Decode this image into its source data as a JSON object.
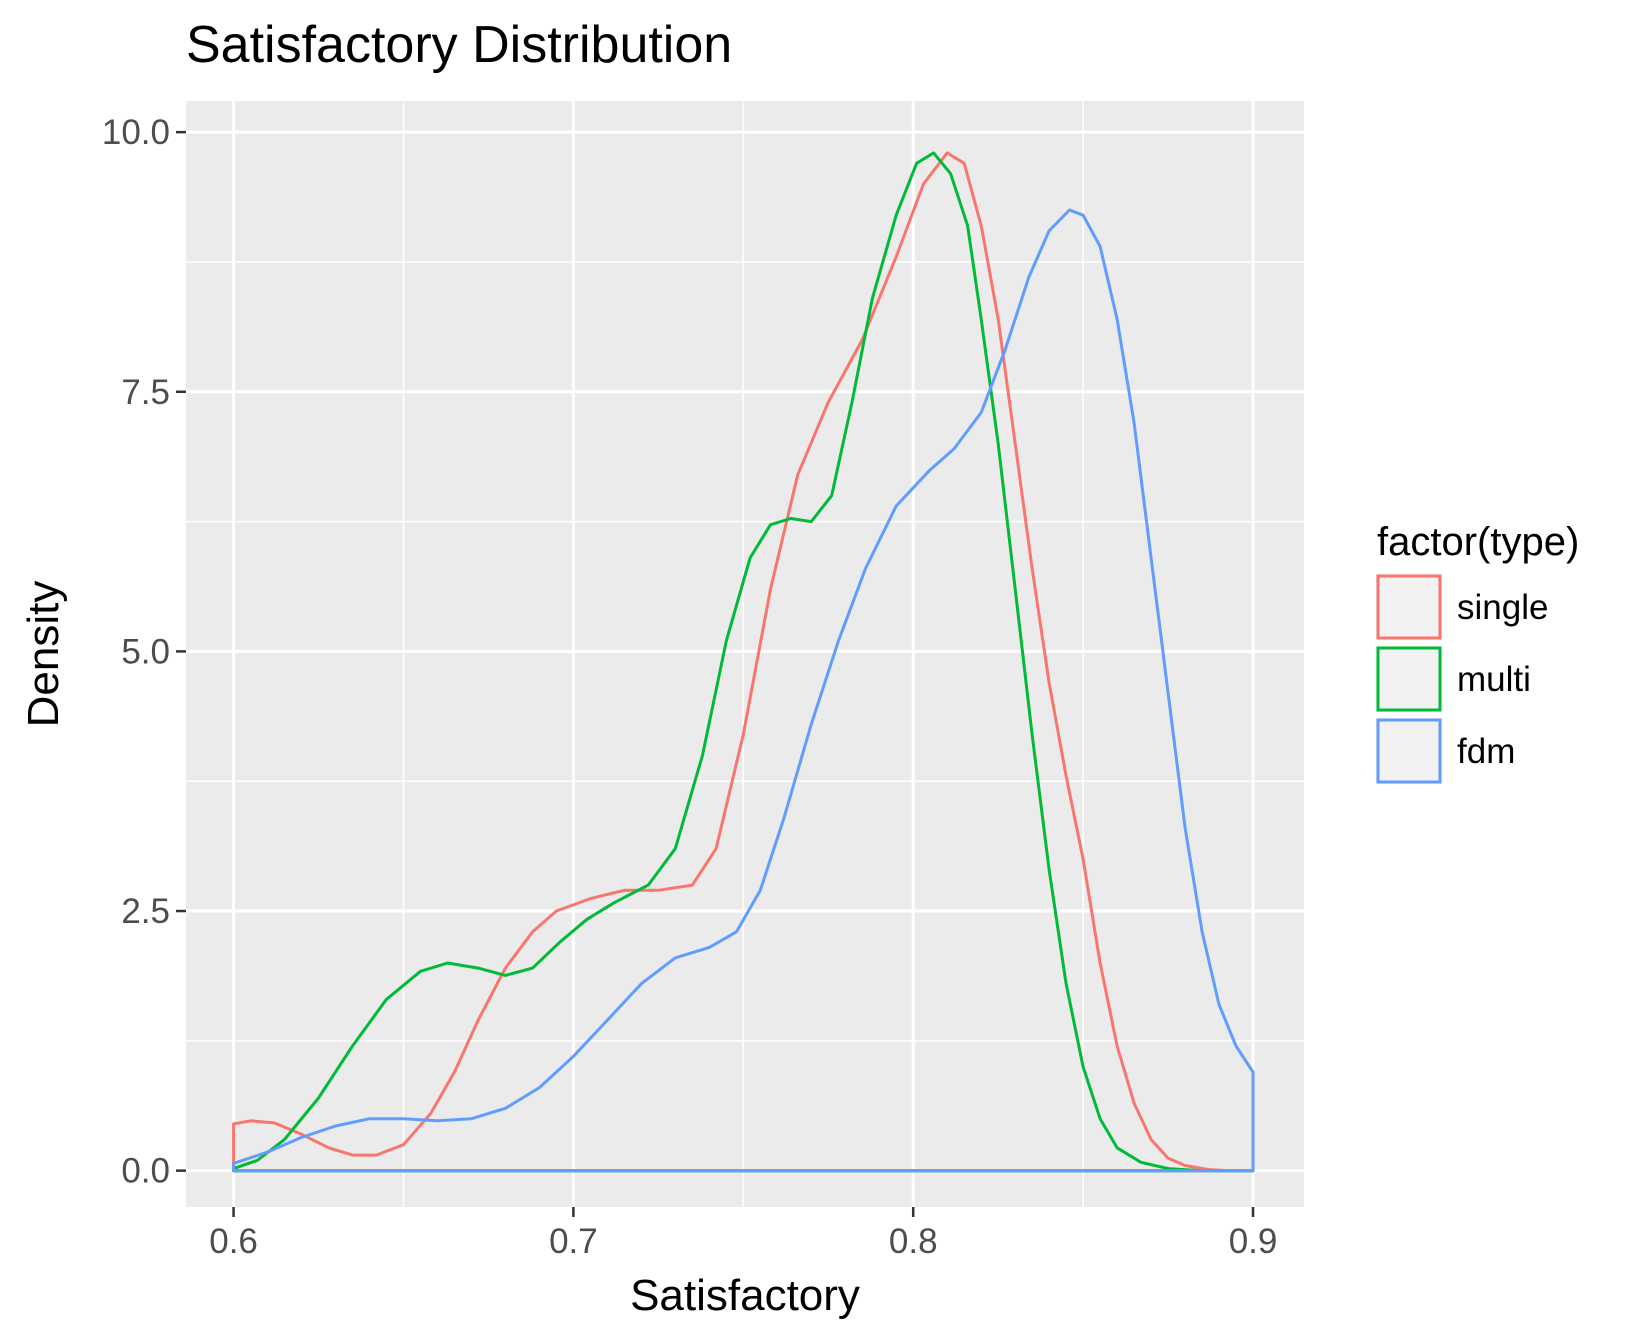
{
  "chart_data": {
    "type": "line",
    "title": "Satisfactory Distribution",
    "xlabel": "Satisfactory",
    "ylabel": "Density",
    "xlim": [
      0.586,
      0.915
    ],
    "ylim": [
      -0.35,
      10.3
    ],
    "x_ticks": [
      0.6,
      0.7,
      0.8,
      0.9
    ],
    "x_tick_labels": [
      "0.6",
      "0.7",
      "0.8",
      "0.9"
    ],
    "y_ticks": [
      0,
      2.5,
      5,
      7.5,
      10
    ],
    "y_tick_labels": [
      "0.0",
      "2.5",
      "5.0",
      "7.5",
      "10.0"
    ],
    "grid": true,
    "panel_background": "#ebebeb",
    "legend": {
      "title": "factor(type)",
      "position": "right"
    },
    "series": [
      {
        "name": "single",
        "color": "#F8766D",
        "points": [
          [
            0.6,
            0.0
          ],
          [
            0.6,
            0.45
          ],
          [
            0.605,
            0.48
          ],
          [
            0.612,
            0.46
          ],
          [
            0.62,
            0.35
          ],
          [
            0.628,
            0.22
          ],
          [
            0.635,
            0.15
          ],
          [
            0.642,
            0.15
          ],
          [
            0.65,
            0.25
          ],
          [
            0.658,
            0.55
          ],
          [
            0.665,
            0.95
          ],
          [
            0.672,
            1.45
          ],
          [
            0.68,
            1.95
          ],
          [
            0.688,
            2.3
          ],
          [
            0.695,
            2.5
          ],
          [
            0.705,
            2.62
          ],
          [
            0.715,
            2.7
          ],
          [
            0.725,
            2.7
          ],
          [
            0.735,
            2.75
          ],
          [
            0.742,
            3.1
          ],
          [
            0.75,
            4.2
          ],
          [
            0.758,
            5.6
          ],
          [
            0.766,
            6.7
          ],
          [
            0.775,
            7.4
          ],
          [
            0.785,
            8.0
          ],
          [
            0.795,
            8.8
          ],
          [
            0.803,
            9.5
          ],
          [
            0.81,
            9.8
          ],
          [
            0.815,
            9.7
          ],
          [
            0.82,
            9.1
          ],
          [
            0.825,
            8.2
          ],
          [
            0.83,
            7.0
          ],
          [
            0.835,
            5.8
          ],
          [
            0.84,
            4.7
          ],
          [
            0.845,
            3.8
          ],
          [
            0.85,
            3.0
          ],
          [
            0.855,
            2.0
          ],
          [
            0.86,
            1.2
          ],
          [
            0.865,
            0.65
          ],
          [
            0.87,
            0.3
          ],
          [
            0.875,
            0.12
          ],
          [
            0.88,
            0.05
          ],
          [
            0.887,
            0.01
          ],
          [
            0.893,
            0.0
          ],
          [
            0.9,
            0.0
          ],
          [
            0.6,
            0.0
          ]
        ]
      },
      {
        "name": "multi",
        "color": "#00BA38",
        "points": [
          [
            0.6,
            0.02
          ],
          [
            0.607,
            0.1
          ],
          [
            0.615,
            0.3
          ],
          [
            0.625,
            0.7
          ],
          [
            0.635,
            1.2
          ],
          [
            0.645,
            1.65
          ],
          [
            0.655,
            1.92
          ],
          [
            0.663,
            2.0
          ],
          [
            0.672,
            1.95
          ],
          [
            0.68,
            1.88
          ],
          [
            0.688,
            1.95
          ],
          [
            0.696,
            2.2
          ],
          [
            0.704,
            2.42
          ],
          [
            0.712,
            2.58
          ],
          [
            0.722,
            2.75
          ],
          [
            0.73,
            3.1
          ],
          [
            0.738,
            4.0
          ],
          [
            0.745,
            5.1
          ],
          [
            0.752,
            5.9
          ],
          [
            0.758,
            6.22
          ],
          [
            0.764,
            6.28
          ],
          [
            0.77,
            6.25
          ],
          [
            0.776,
            6.5
          ],
          [
            0.782,
            7.4
          ],
          [
            0.788,
            8.4
          ],
          [
            0.795,
            9.2
          ],
          [
            0.801,
            9.7
          ],
          [
            0.806,
            9.8
          ],
          [
            0.811,
            9.6
          ],
          [
            0.816,
            9.1
          ],
          [
            0.82,
            8.2
          ],
          [
            0.825,
            7.0
          ],
          [
            0.83,
            5.6
          ],
          [
            0.835,
            4.2
          ],
          [
            0.84,
            2.9
          ],
          [
            0.845,
            1.8
          ],
          [
            0.85,
            1.0
          ],
          [
            0.855,
            0.5
          ],
          [
            0.86,
            0.22
          ],
          [
            0.867,
            0.08
          ],
          [
            0.875,
            0.02
          ],
          [
            0.885,
            0.0
          ],
          [
            0.9,
            0.0
          ],
          [
            0.6,
            0.0
          ],
          [
            0.6,
            0.02
          ]
        ]
      },
      {
        "name": "fdm",
        "color": "#619CFF",
        "points": [
          [
            0.6,
            0.07
          ],
          [
            0.61,
            0.18
          ],
          [
            0.62,
            0.32
          ],
          [
            0.63,
            0.43
          ],
          [
            0.64,
            0.5
          ],
          [
            0.65,
            0.5
          ],
          [
            0.66,
            0.48
          ],
          [
            0.67,
            0.5
          ],
          [
            0.68,
            0.6
          ],
          [
            0.69,
            0.8
          ],
          [
            0.7,
            1.1
          ],
          [
            0.71,
            1.45
          ],
          [
            0.72,
            1.8
          ],
          [
            0.73,
            2.05
          ],
          [
            0.74,
            2.15
          ],
          [
            0.748,
            2.3
          ],
          [
            0.755,
            2.7
          ],
          [
            0.762,
            3.4
          ],
          [
            0.77,
            4.3
          ],
          [
            0.778,
            5.1
          ],
          [
            0.786,
            5.8
          ],
          [
            0.795,
            6.4
          ],
          [
            0.805,
            6.75
          ],
          [
            0.812,
            6.95
          ],
          [
            0.82,
            7.3
          ],
          [
            0.827,
            7.9
          ],
          [
            0.834,
            8.6
          ],
          [
            0.84,
            9.05
          ],
          [
            0.846,
            9.25
          ],
          [
            0.85,
            9.2
          ],
          [
            0.855,
            8.9
          ],
          [
            0.86,
            8.2
          ],
          [
            0.865,
            7.2
          ],
          [
            0.87,
            5.9
          ],
          [
            0.875,
            4.6
          ],
          [
            0.88,
            3.3
          ],
          [
            0.885,
            2.3
          ],
          [
            0.89,
            1.6
          ],
          [
            0.895,
            1.2
          ],
          [
            0.9,
            0.95
          ],
          [
            0.9,
            0.0
          ],
          [
            0.6,
            0.0
          ],
          [
            0.6,
            0.07
          ]
        ]
      }
    ]
  }
}
